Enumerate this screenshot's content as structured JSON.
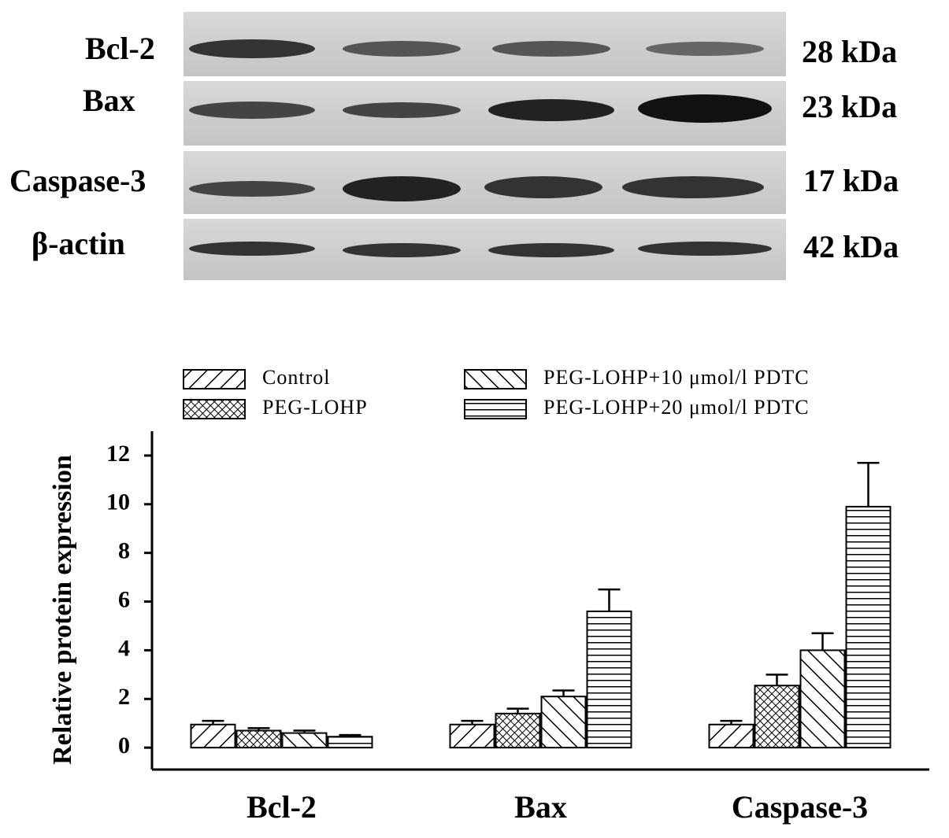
{
  "blot": {
    "rows": [
      {
        "protein": "Bcl-2",
        "size": "28 kDa"
      },
      {
        "protein": "Bax",
        "size": "23 kDa"
      },
      {
        "protein": "Caspase-3",
        "size": "17 kDa"
      },
      {
        "protein": "β-actin",
        "size": "42 kDa"
      }
    ]
  },
  "chart_data": {
    "type": "bar",
    "y_label": "Relative protein expression",
    "categories": [
      "Bcl-2",
      "Bax",
      "Caspase-3"
    ],
    "series": [
      {
        "name": "Control",
        "color": "#000000",
        "pattern": "diagonal",
        "values": [
          0.95,
          0.95,
          0.95
        ],
        "errors": [
          0.15,
          0.15,
          0.15
        ]
      },
      {
        "name": "PEG-LOHP",
        "color": "#000000",
        "pattern": "crosshatch",
        "values": [
          0.7,
          1.4,
          2.55
        ],
        "errors": [
          0.1,
          0.2,
          0.45
        ]
      },
      {
        "name": "PEG-LOHP+10 μmol/l PDTC",
        "color": "#000000",
        "pattern": "back-diagonal",
        "values": [
          0.6,
          2.1,
          4.0
        ],
        "errors": [
          0.1,
          0.25,
          0.7
        ]
      },
      {
        "name": "PEG-LOHP+20 μmol/l PDTC",
        "color": "#000000",
        "pattern": "horizontal",
        "values": [
          0.45,
          5.6,
          9.9
        ],
        "errors": [
          0.07,
          0.9,
          1.8
        ]
      }
    ],
    "ylim": [
      -0.9,
      13
    ],
    "yticks": [
      0,
      2,
      4,
      6,
      8,
      10,
      12
    ],
    "legend": "top"
  }
}
